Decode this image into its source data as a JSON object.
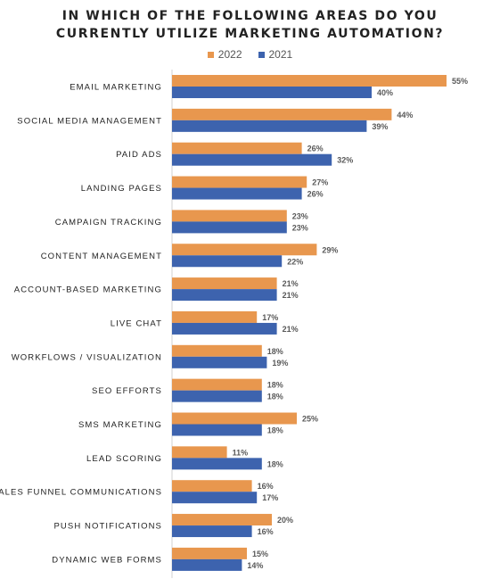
{
  "chart_data": {
    "type": "bar",
    "orientation": "horizontal",
    "title_line1": "IN WHICH OF THE FOLLOWING AREAS DO YOU",
    "title_line2": "CURRENTLY UTILIZE MARKETING AUTOMATION?",
    "categories": [
      "EMAIL MARKETING",
      "SOCIAL MEDIA MANAGEMENT",
      "PAID ADS",
      "LANDING PAGES",
      "CAMPAIGN TRACKING",
      "CONTENT MANAGEMENT",
      "ACCOUNT-BASED MARKETING",
      "LIVE CHAT",
      "WORKFLOWS / VISUALIZATION",
      "SEO EFFORTS",
      "SMS MARKETING",
      "LEAD SCORING",
      "SALES FUNNEL COMMUNICATIONS",
      "PUSH NOTIFICATIONS",
      "DYNAMIC WEB FORMS"
    ],
    "series": [
      {
        "name": "2022",
        "color": "#E8974E",
        "values": [
          55,
          44,
          26,
          27,
          23,
          29,
          21,
          17,
          18,
          18,
          25,
          11,
          16,
          20,
          15
        ]
      },
      {
        "name": "2021",
        "color": "#3D63AE",
        "values": [
          40,
          39,
          32,
          26,
          23,
          22,
          21,
          21,
          19,
          18,
          18,
          18,
          17,
          16,
          14
        ]
      }
    ],
    "value_suffix": "%",
    "legend_position": "top",
    "grid": false
  }
}
